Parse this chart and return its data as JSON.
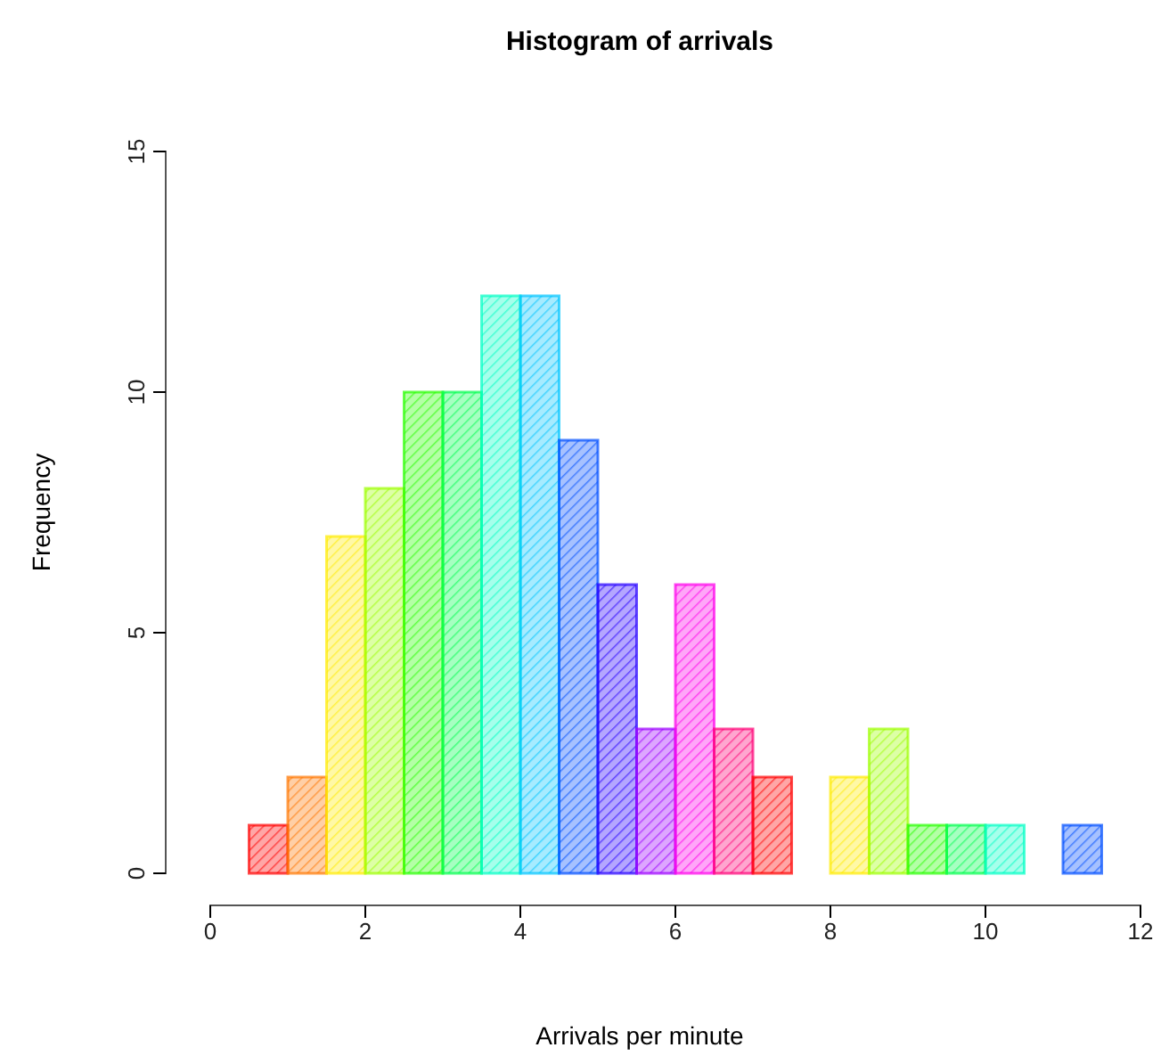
{
  "chart_data": {
    "type": "histogram",
    "title": "Histogram of arrivals",
    "xlabel": "Arrivals per minute",
    "ylabel": "Frequency",
    "bins": [
      0.5,
      1,
      1.5,
      2,
      2.5,
      3,
      3.5,
      4,
      4.5,
      5,
      5.5,
      6,
      6.5,
      7,
      7.5,
      8,
      8.5,
      9,
      9.5,
      10,
      10.5,
      11,
      11.5
    ],
    "values": [
      1,
      2,
      7,
      8,
      10,
      10,
      12,
      12,
      9,
      6,
      3,
      6,
      3,
      2,
      0,
      2,
      3,
      1,
      1,
      1,
      0,
      1
    ],
    "colors": [
      "#ff0000",
      "#ff7600",
      "#ffeb00",
      "#9dff00",
      "#27ff00",
      "#00ff4e",
      "#00ffc4",
      "#00c4ff",
      "#004eff",
      "#2700ff",
      "#9d00ff",
      "#ff00eb",
      "#ff0076",
      "#ff0000",
      "#ff7600",
      "#ffeb00",
      "#9dff00",
      "#27ff00",
      "#00ff4e",
      "#00ffc4",
      "#00c4ff",
      "#004eff"
    ],
    "xlim": [
      0,
      12
    ],
    "ylim": [
      0,
      15
    ],
    "xticks": [
      0,
      2,
      4,
      6,
      8,
      10,
      12
    ],
    "yticks": [
      0,
      5,
      10,
      15
    ],
    "grid": false
  }
}
